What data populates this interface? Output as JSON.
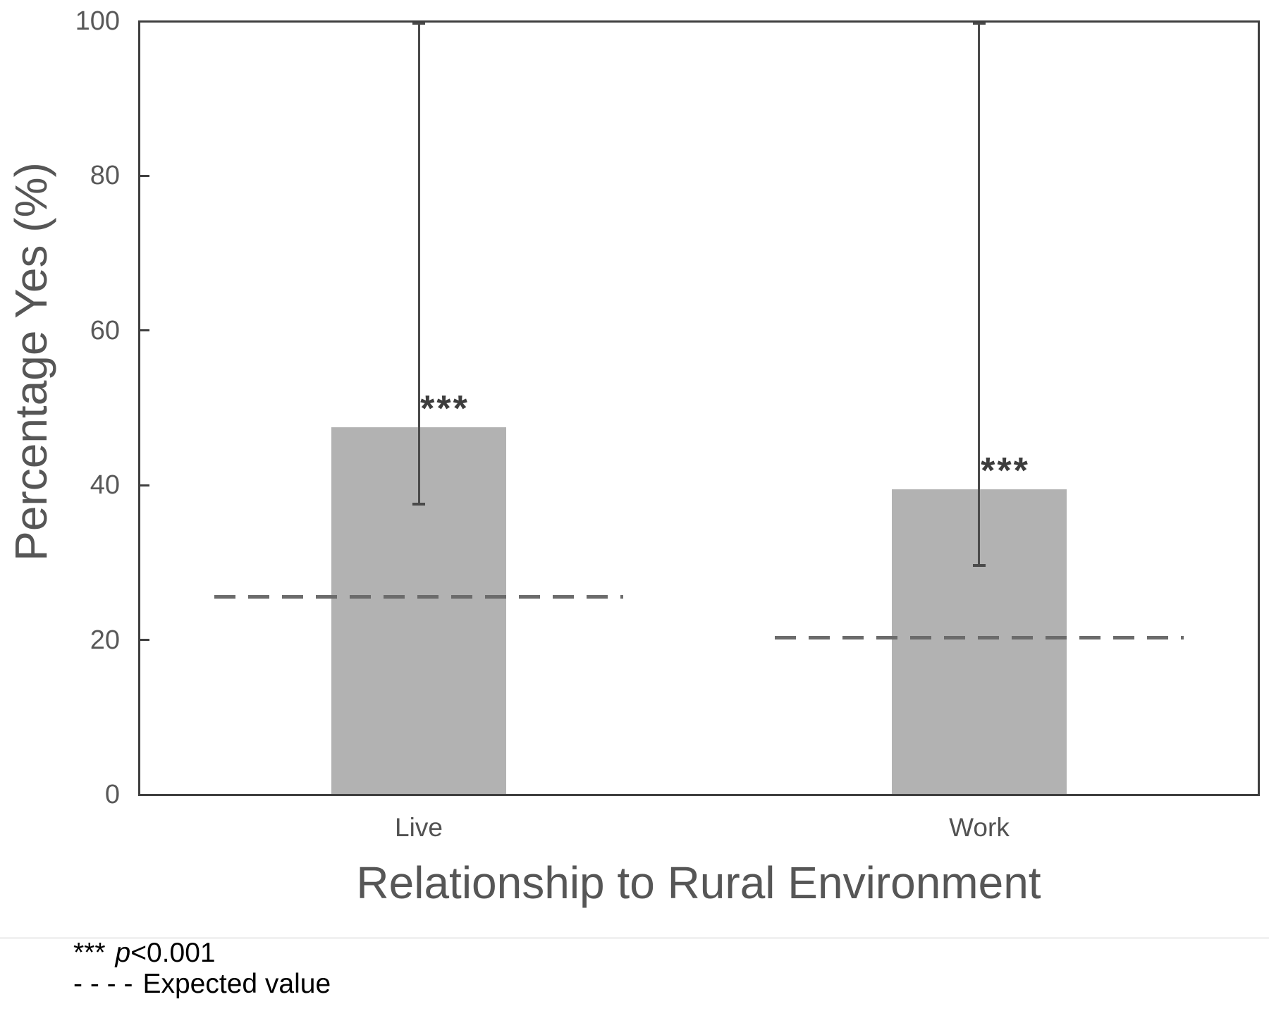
{
  "chart_data": {
    "type": "bar",
    "title": "",
    "xlabel": "Relationship to Rural Environment",
    "ylabel": "Percentage Yes (%)",
    "ylim": [
      0,
      100
    ],
    "yticks": [
      0,
      20,
      40,
      60,
      80,
      100
    ],
    "categories": [
      "Live",
      "Work"
    ],
    "values": [
      47.5,
      39.5
    ],
    "error_low": [
      37.5,
      29.5
    ],
    "error_high": [
      100,
      100
    ],
    "expected_values": [
      25.6,
      20.3
    ],
    "significance": [
      "***",
      "***"
    ],
    "grid": false,
    "legend": "none",
    "colors": {
      "bar": "#b2b2b2",
      "axis": "#3f3f3f",
      "error": "#4a4a4a",
      "dash": "#6b6b6b",
      "text": "#565656"
    }
  },
  "footer": {
    "sig_stars": "***",
    "sig_p": "p",
    "sig_rest": "<0.001",
    "dash_sample": "- - - -",
    "dash_label": "Expected value"
  }
}
